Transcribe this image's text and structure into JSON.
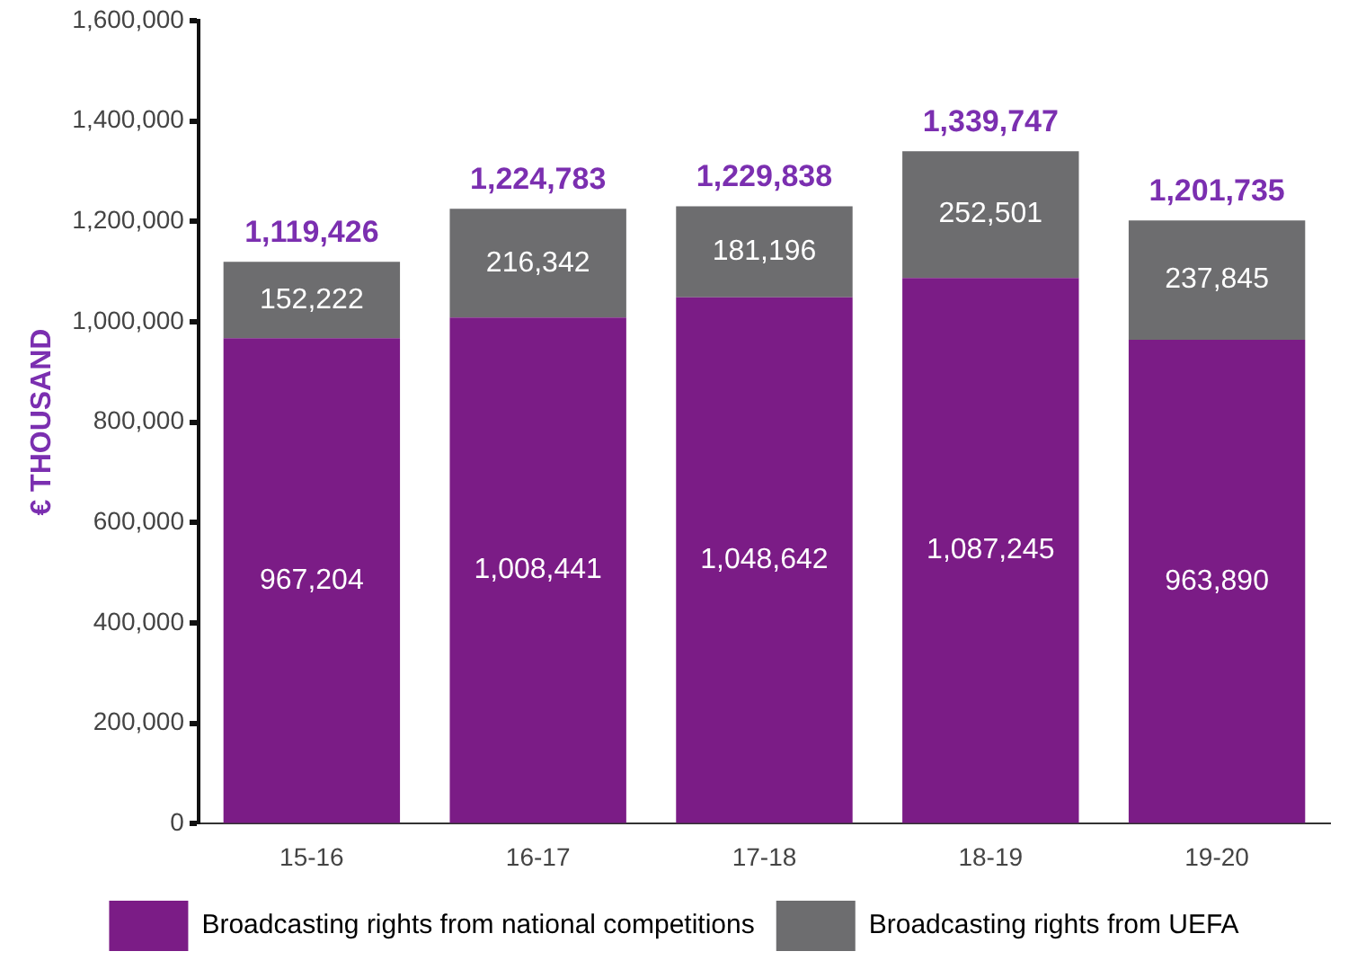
{
  "chart_data": {
    "type": "bar",
    "stacked": true,
    "ylabel": "€ THOUSAND",
    "categories": [
      "15-16",
      "16-17",
      "17-18",
      "18-19",
      "19-20"
    ],
    "series": [
      {
        "name": "Broadcasting rights from national competitions",
        "color": "#7b1c86",
        "values": [
          967204,
          1008441,
          1048642,
          1087245,
          963890
        ],
        "value_labels": [
          "967,204",
          "1,008,441",
          "1,048,642",
          "1,087,245",
          "963,890"
        ]
      },
      {
        "name": "Broadcasting rights from UEFA",
        "color": "#6d6d6f",
        "values": [
          152222,
          216342,
          181196,
          252501,
          237845
        ],
        "value_labels": [
          "152,222",
          "216,342",
          "181,196",
          "252,501",
          "237,845"
        ]
      }
    ],
    "totals": [
      "1,119,426",
      "1,224,783",
      "1,229,838",
      "1,339,747",
      "1,201,735"
    ],
    "ylim": [
      0,
      1600000
    ],
    "yticks": [
      0,
      {
        "value": 200000,
        "label": "200,000"
      },
      {
        "value": 400000,
        "label": "400,000"
      },
      {
        "value": 600000,
        "label": "600,000"
      },
      {
        "value": 800000,
        "label": "800,000"
      },
      {
        "value": 1000000,
        "label": "1,000,000"
      },
      {
        "value": 1200000,
        "label": "1,200,000"
      },
      {
        "value": 1400000,
        "label": "1,400,000"
      },
      {
        "value": 1600000,
        "label": "1,600,000"
      }
    ],
    "grid": false,
    "legend": "bottom"
  }
}
